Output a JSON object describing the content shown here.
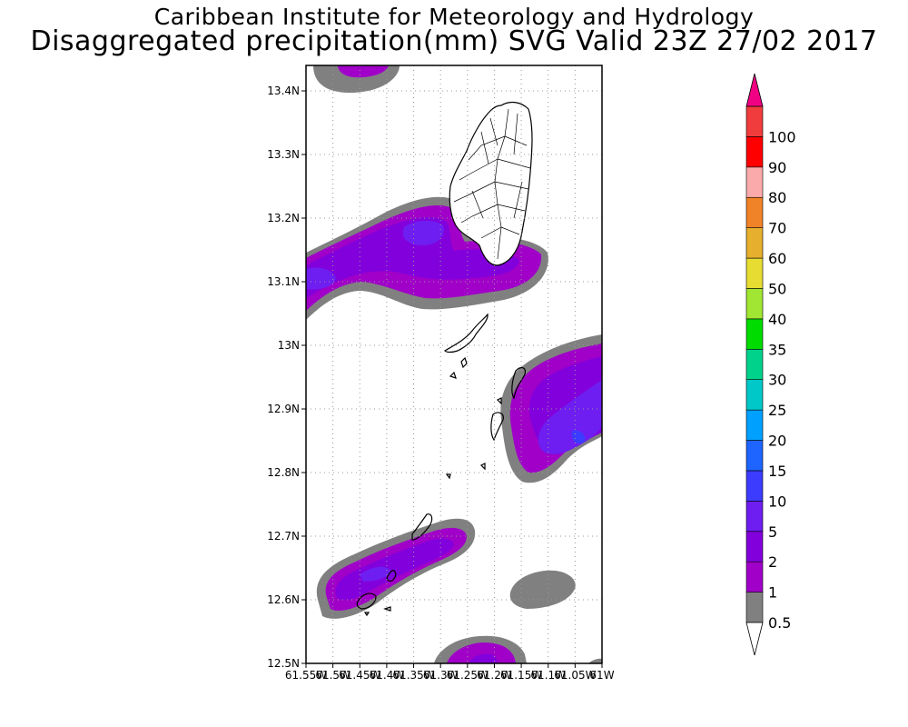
{
  "header": {
    "line1": "Caribbean Institute for Meteorology and Hydrology",
    "line2": "Disaggregated precipitation(mm) SVG Valid 23Z 27/02 2017"
  },
  "map": {
    "lon_range": [
      -61.55,
      -61.0
    ],
    "lat_range": [
      12.5,
      13.44
    ],
    "y_ticks": [
      {
        "lat": 13.4,
        "label": "13.4N"
      },
      {
        "lat": 13.3,
        "label": "13.3N"
      },
      {
        "lat": 13.2,
        "label": "13.2N"
      },
      {
        "lat": 13.1,
        "label": "13.1N"
      },
      {
        "lat": 13.0,
        "label": "13N"
      },
      {
        "lat": 12.9,
        "label": "12.9N"
      },
      {
        "lat": 12.8,
        "label": "12.8N"
      },
      {
        "lat": 12.7,
        "label": "12.7N"
      },
      {
        "lat": 12.6,
        "label": "12.6N"
      },
      {
        "lat": 12.5,
        "label": "12.5N"
      }
    ],
    "x_ticks": [
      {
        "lon": -61.55,
        "label": "61.55W"
      },
      {
        "lon": -61.5,
        "label": "61.5W"
      },
      {
        "lon": -61.45,
        "label": "61.45W"
      },
      {
        "lon": -61.4,
        "label": "61.4W"
      },
      {
        "lon": -61.35,
        "label": "61.35W"
      },
      {
        "lon": -61.3,
        "label": "61.3W"
      },
      {
        "lon": -61.25,
        "label": "61.25W"
      },
      {
        "lon": -61.2,
        "label": "61.2W"
      },
      {
        "lon": -61.15,
        "label": "61.15W"
      },
      {
        "lon": -61.1,
        "label": "61.1W"
      },
      {
        "lon": -61.05,
        "label": "61.05W"
      },
      {
        "lon": -61.0,
        "label": "61W"
      }
    ],
    "grid": "dotted"
  },
  "colorbar": {
    "bins": [
      {
        "label": "0.5",
        "color": "#808080"
      },
      {
        "label": "1",
        "color": "#a000c8"
      },
      {
        "label": "2",
        "color": "#8200dc"
      },
      {
        "label": "5",
        "color": "#6e1ef0"
      },
      {
        "label": "10",
        "color": "#3c3cff"
      },
      {
        "label": "15",
        "color": "#1e64ff"
      },
      {
        "label": "20",
        "color": "#00a0ff"
      },
      {
        "label": "25",
        "color": "#00c8c8"
      },
      {
        "label": "30",
        "color": "#00d28c"
      },
      {
        "label": "35",
        "color": "#00dc00"
      },
      {
        "label": "40",
        "color": "#a0e632"
      },
      {
        "label": "50",
        "color": "#e6dc32"
      },
      {
        "label": "60",
        "color": "#e6af2d"
      },
      {
        "label": "70",
        "color": "#f08228"
      },
      {
        "label": "80",
        "color": "#faaaaa"
      },
      {
        "label": "90",
        "color": "#ff0000"
      },
      {
        "label": "100",
        "color": "#f03c3c"
      }
    ],
    "top_color": "#f00082",
    "bottom_color": "#ffffff"
  }
}
